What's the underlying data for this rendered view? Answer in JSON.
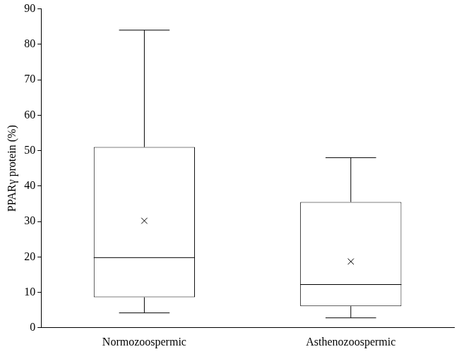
{
  "chart_data": {
    "type": "box",
    "y_label": "PPARγ protein (%)",
    "categories": [
      "Normozoospermic",
      "Asthenozoospermic"
    ],
    "min": [
      4.2,
      2.8
    ],
    "q1": [
      8.6,
      6.1
    ],
    "median": [
      19.8,
      12.2
    ],
    "q3": [
      51,
      35.5
    ],
    "max": [
      84,
      48
    ],
    "mean": [
      30.2,
      18.7
    ],
    "color": "#000000",
    "marker": "cross",
    "ylim": [
      0,
      90
    ],
    "yticks": [
      0,
      10,
      20,
      30,
      40,
      50,
      60,
      70,
      80,
      90
    ],
    "grid": false
  }
}
